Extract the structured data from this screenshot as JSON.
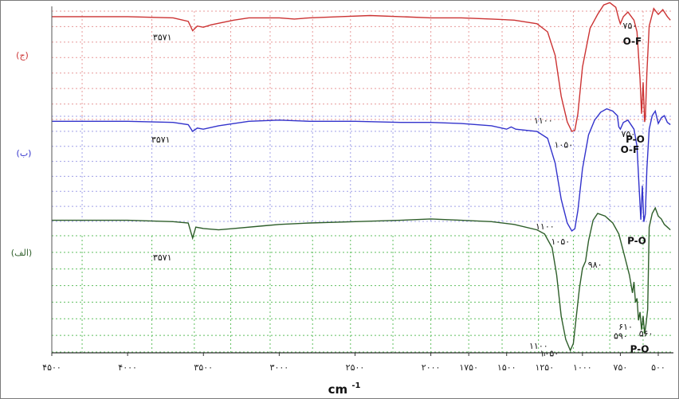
{
  "chart_data": {
    "type": "line",
    "title": "",
    "xlabel": "cm",
    "xlabel_superscript": "-1",
    "ylabel": "",
    "xlim": [
      4500,
      400
    ],
    "x_reversed": true,
    "grid": true,
    "legend": "none",
    "x_ticks": [
      {
        "value": 4500,
        "label": "۴۵۰۰"
      },
      {
        "value": 4000,
        "label": "۴۰۰۰"
      },
      {
        "value": 3500,
        "label": "۳۵۰۰"
      },
      {
        "value": 3000,
        "label": "۳۰۰۰"
      },
      {
        "value": 2500,
        "label": "۲۵۰۰"
      },
      {
        "value": 2000,
        "label": "۲۰۰۰"
      },
      {
        "value": 1750,
        "label": "۱۷۵۰"
      },
      {
        "value": 1500,
        "label": "۱۵۰۰"
      },
      {
        "value": 1250,
        "label": "۱۲۵۰"
      },
      {
        "value": 1000,
        "label": "۱۰۰۰"
      },
      {
        "value": 750,
        "label": "۷۵۰"
      },
      {
        "value": 500,
        "label": "۵۰۰"
      }
    ],
    "series": [
      {
        "name": "(ج)",
        "color": "#cc3333",
        "grid_color": "#e89a9a",
        "points": [
          [
            4500,
            0.98
          ],
          [
            4000,
            0.98
          ],
          [
            3700,
            0.97
          ],
          [
            3600,
            0.94
          ],
          [
            3571,
            0.86
          ],
          [
            3540,
            0.9
          ],
          [
            3500,
            0.89
          ],
          [
            3450,
            0.91
          ],
          [
            3300,
            0.95
          ],
          [
            3200,
            0.97
          ],
          [
            3000,
            0.97
          ],
          [
            2900,
            0.96
          ],
          [
            2800,
            0.97
          ],
          [
            2600,
            0.98
          ],
          [
            2400,
            0.99
          ],
          [
            2200,
            0.98
          ],
          [
            2000,
            0.97
          ],
          [
            1800,
            0.97
          ],
          [
            1600,
            0.96
          ],
          [
            1450,
            0.95
          ],
          [
            1300,
            0.92
          ],
          [
            1230,
            0.85
          ],
          [
            1180,
            0.65
          ],
          [
            1140,
            0.3
          ],
          [
            1100,
            0.08
          ],
          [
            1070,
            0.0
          ],
          [
            1050,
            0.01
          ],
          [
            1030,
            0.15
          ],
          [
            1000,
            0.55
          ],
          [
            950,
            0.88
          ],
          [
            900,
            1.0
          ],
          [
            860,
            1.08
          ],
          [
            820,
            1.1
          ],
          [
            780,
            1.06
          ],
          [
            760,
            0.96
          ],
          [
            750,
            0.92
          ],
          [
            730,
            0.98
          ],
          [
            700,
            1.02
          ],
          [
            660,
            0.95
          ],
          [
            640,
            0.85
          ],
          [
            620,
            0.45
          ],
          [
            610,
            0.15
          ],
          [
            600,
            0.42
          ],
          [
            590,
            0.08
          ],
          [
            585,
            0.12
          ],
          [
            575,
            0.5
          ],
          [
            560,
            0.9
          ],
          [
            530,
            1.05
          ],
          [
            500,
            1.0
          ],
          [
            470,
            1.04
          ],
          [
            440,
            0.98
          ],
          [
            420,
            0.95
          ]
        ]
      },
      {
        "name": "(ب)",
        "color": "#3333cc",
        "grid_color": "#a0a0e8",
        "points": [
          [
            4500,
            0.97
          ],
          [
            4000,
            0.97
          ],
          [
            3700,
            0.96
          ],
          [
            3600,
            0.94
          ],
          [
            3571,
            0.88
          ],
          [
            3540,
            0.91
          ],
          [
            3500,
            0.9
          ],
          [
            3400,
            0.93
          ],
          [
            3200,
            0.97
          ],
          [
            3000,
            0.98
          ],
          [
            2800,
            0.97
          ],
          [
            2500,
            0.97
          ],
          [
            2200,
            0.96
          ],
          [
            2000,
            0.96
          ],
          [
            1800,
            0.95
          ],
          [
            1600,
            0.93
          ],
          [
            1500,
            0.9
          ],
          [
            1470,
            0.92
          ],
          [
            1440,
            0.9
          ],
          [
            1300,
            0.88
          ],
          [
            1230,
            0.82
          ],
          [
            1180,
            0.6
          ],
          [
            1140,
            0.28
          ],
          [
            1100,
            0.07
          ],
          [
            1070,
            0.0
          ],
          [
            1050,
            0.02
          ],
          [
            1030,
            0.18
          ],
          [
            1000,
            0.55
          ],
          [
            960,
            0.85
          ],
          [
            920,
            0.98
          ],
          [
            880,
            1.05
          ],
          [
            840,
            1.08
          ],
          [
            800,
            1.06
          ],
          [
            770,
            1.02
          ],
          [
            760,
            0.92
          ],
          [
            750,
            0.9
          ],
          [
            730,
            0.96
          ],
          [
            700,
            0.98
          ],
          [
            660,
            0.9
          ],
          [
            640,
            0.75
          ],
          [
            625,
            0.35
          ],
          [
            615,
            0.1
          ],
          [
            605,
            0.4
          ],
          [
            595,
            0.08
          ],
          [
            585,
            0.15
          ],
          [
            575,
            0.55
          ],
          [
            560,
            0.9
          ],
          [
            540,
            1.02
          ],
          [
            520,
            1.06
          ],
          [
            500,
            0.95
          ],
          [
            480,
            1.0
          ],
          [
            460,
            1.02
          ],
          [
            440,
            0.96
          ],
          [
            420,
            0.94
          ]
        ]
      },
      {
        "name": "(الف)",
        "color": "#2e5e2a",
        "grid_color": "#5fbf5f",
        "points": [
          [
            4500,
            0.95
          ],
          [
            4000,
            0.95
          ],
          [
            3700,
            0.94
          ],
          [
            3600,
            0.93
          ],
          [
            3571,
            0.82
          ],
          [
            3550,
            0.9
          ],
          [
            3500,
            0.89
          ],
          [
            3400,
            0.88
          ],
          [
            3300,
            0.89
          ],
          [
            3100,
            0.91
          ],
          [
            3000,
            0.92
          ],
          [
            2800,
            0.93
          ],
          [
            2500,
            0.94
          ],
          [
            2200,
            0.95
          ],
          [
            2000,
            0.96
          ],
          [
            1800,
            0.95
          ],
          [
            1600,
            0.94
          ],
          [
            1450,
            0.92
          ],
          [
            1300,
            0.88
          ],
          [
            1250,
            0.85
          ],
          [
            1200,
            0.75
          ],
          [
            1170,
            0.55
          ],
          [
            1140,
            0.25
          ],
          [
            1110,
            0.08
          ],
          [
            1080,
            0.0
          ],
          [
            1060,
            0.05
          ],
          [
            1040,
            0.25
          ],
          [
            1020,
            0.45
          ],
          [
            1000,
            0.6
          ],
          [
            980,
            0.65
          ],
          [
            960,
            0.8
          ],
          [
            930,
            0.95
          ],
          [
            900,
            1.0
          ],
          [
            850,
            0.98
          ],
          [
            800,
            0.93
          ],
          [
            760,
            0.85
          ],
          [
            720,
            0.68
          ],
          [
            690,
            0.55
          ],
          [
            670,
            0.42
          ],
          [
            660,
            0.5
          ],
          [
            650,
            0.35
          ],
          [
            640,
            0.38
          ],
          [
            630,
            0.22
          ],
          [
            620,
            0.28
          ],
          [
            610,
            0.15
          ],
          [
            600,
            0.25
          ],
          [
            590,
            0.12
          ],
          [
            580,
            0.2
          ],
          [
            570,
            0.3
          ],
          [
            560,
            0.9
          ],
          [
            540,
            1.0
          ],
          [
            520,
            1.04
          ],
          [
            500,
            0.98
          ],
          [
            480,
            0.96
          ],
          [
            460,
            0.92
          ],
          [
            440,
            0.9
          ],
          [
            420,
            0.88
          ]
        ]
      }
    ],
    "annotations": [
      {
        "series": 0,
        "x": 3571,
        "y": 0.86,
        "label": "۳۵۷۱"
      },
      {
        "series": 0,
        "x": 1100,
        "y": 0.08,
        "label": "۱۱۰۰"
      },
      {
        "series": 0,
        "x": 1050,
        "y": 0.01,
        "label": "۱۰۵۰"
      },
      {
        "series": 0,
        "x": 750,
        "y": 0.92,
        "label": "۷۵۰"
      },
      {
        "series": 0,
        "x": 750,
        "y": 0.92,
        "label": "O-F"
      },
      {
        "series": 0,
        "x": 600,
        "y": 0.08,
        "label": "P-O"
      },
      {
        "series": 1,
        "x": 3571,
        "y": 0.88,
        "label": "۳۵۷۱"
      },
      {
        "series": 1,
        "x": 1100,
        "y": 0.07,
        "label": "۱۱۰۰"
      },
      {
        "series": 1,
        "x": 1050,
        "y": 0.02,
        "label": "۱۰۵۰"
      },
      {
        "series": 1,
        "x": 750,
        "y": 0.9,
        "label": "۷۵۰"
      },
      {
        "series": 1,
        "x": 750,
        "y": 0.9,
        "label": "O-F"
      },
      {
        "series": 1,
        "x": 600,
        "y": 0.08,
        "label": "P-O"
      },
      {
        "series": 2,
        "x": 3571,
        "y": 0.82,
        "label": "۳۵۷۱"
      },
      {
        "series": 2,
        "x": 980,
        "y": 0.65,
        "label": "۹۸۰"
      },
      {
        "series": 2,
        "x": 1100,
        "y": 0.08,
        "label": "۱۱۰۰"
      },
      {
        "series": 2,
        "x": 1050,
        "y": 0.05,
        "label": "۱۰۵۰"
      },
      {
        "series": 2,
        "x": 610,
        "y": 0.15,
        "label": "۶۱۰"
      },
      {
        "series": 2,
        "x": 590,
        "y": 0.12,
        "label": "۵۹۰"
      },
      {
        "series": 2,
        "x": 560,
        "y": 0.3,
        "label": "۵۶۰"
      },
      {
        "series": 2,
        "x": 560,
        "y": 0.3,
        "label": "P-O"
      }
    ]
  }
}
